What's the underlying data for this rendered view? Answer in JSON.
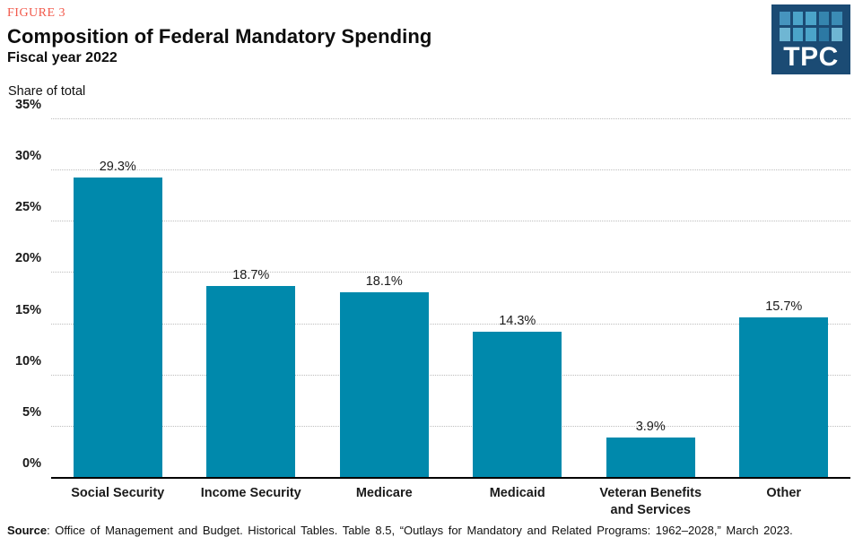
{
  "header": {
    "figure_label": "FIGURE 3",
    "title": "Composition of Federal Mandatory Spending",
    "subtitle": "Fiscal year 2022"
  },
  "logo": {
    "text": "TPC",
    "background": "#1B4B74",
    "square_colors": [
      "#4694BE",
      "#4BA4C9",
      "#4BA4C9",
      "#3585AE",
      "#3B8CB5",
      "#6FB6D3",
      "#4BA4C9",
      "#4BA4C9",
      "#2C79A4",
      "#6FB6D3"
    ]
  },
  "axis_title": "Share of total",
  "chart_data": {
    "type": "bar",
    "title": "Composition of Federal Mandatory Spending",
    "subtitle": "Fiscal year 2022",
    "ylabel": "Share of total",
    "xlabel": "",
    "categories": [
      "Social Security",
      "Income Security",
      "Medicare",
      "Medicaid",
      "Veteran Benefits and Services",
      "Other"
    ],
    "values": [
      29.3,
      18.7,
      18.1,
      14.3,
      3.9,
      15.7
    ],
    "data_labels": [
      "29.3%",
      "18.7%",
      "18.1%",
      "14.3%",
      "3.9%",
      "15.7%"
    ],
    "ylim": [
      0,
      35
    ],
    "ytick_labels": [
      "0%",
      "5%",
      "10%",
      "15%",
      "20%",
      "25%",
      "30%",
      "35%"
    ],
    "grid": "dotted horizontal",
    "legend": "none",
    "bar_color": "#0089AC"
  },
  "colors": {
    "bar": "#0089AC",
    "figure_label": "#F2594B",
    "gridline": "#BDBDBD",
    "axis_line": "#000000"
  },
  "source": {
    "label": "Source",
    "text": ": Office of Management and Budget. Historical Tables. Table 8.5, “Outlays for Mandatory and Related Programs: 1962–2028,” March 2023."
  }
}
